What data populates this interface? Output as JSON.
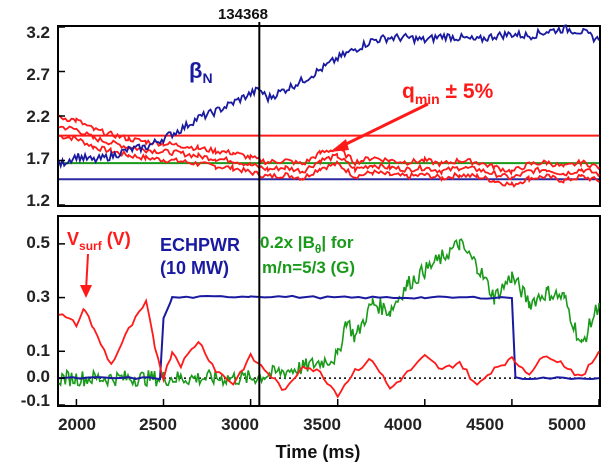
{
  "chart_data": [
    {
      "type": "line",
      "panel": "top",
      "shot_label": "134368",
      "xlim": [
        1900,
        5000
      ],
      "ylim": [
        1.2,
        3.2
      ],
      "y_ticks": [
        "3.2",
        "2.7",
        "2.2",
        "1.7",
        "1.2"
      ],
      "y_tick_values": [
        3.2,
        2.7,
        2.2,
        1.7,
        1.2
      ],
      "annotations": {
        "beta_n": "β",
        "beta_n_sub": "N",
        "qmin": "q",
        "qmin_sub": "min",
        "qmin_pm": " ± 5%"
      },
      "colors": {
        "beta_n": "#1a1aa0",
        "qmin": "#ff1a1a",
        "reference_green": "#1a9a1a",
        "reference_blue": "#2a2aa0",
        "reference_red": "#ff1a1a"
      },
      "reference_lines": [
        {
          "color": "red",
          "y": 1.98
        },
        {
          "color": "green",
          "y": 1.67
        },
        {
          "color": "blue",
          "y": 1.49
        }
      ],
      "series": [
        {
          "key": "beta_n",
          "x": [
            1900,
            2000,
            2100,
            2200,
            2300,
            2400,
            2500,
            2600,
            2700,
            2800,
            2900,
            3000,
            3050,
            3100,
            3200,
            3300,
            3400,
            3500,
            3600,
            3700,
            3800,
            3900,
            4000,
            4100,
            4200,
            4300,
            4400,
            4500,
            4600,
            4700,
            4800,
            4900,
            5000
          ],
          "y": [
            1.65,
            1.75,
            1.7,
            1.75,
            1.82,
            1.85,
            1.95,
            2.05,
            2.18,
            2.25,
            2.35,
            2.45,
            2.5,
            2.4,
            2.5,
            2.6,
            2.72,
            2.85,
            2.95,
            3.05,
            3.08,
            3.08,
            3.05,
            3.1,
            3.08,
            3.05,
            3.1,
            3.12,
            3.1,
            3.15,
            3.18,
            3.15,
            3.05
          ]
        },
        {
          "key": "qmin",
          "x": [
            1900,
            2000,
            2100,
            2200,
            2300,
            2400,
            2500,
            2600,
            2700,
            2800,
            2900,
            3000,
            3100,
            3200,
            3300,
            3400,
            3500,
            3600,
            3700,
            3800,
            3900,
            4000,
            4100,
            4200,
            4300,
            4400,
            4500,
            4600,
            4700,
            4800,
            4900,
            5000
          ],
          "y": [
            2.08,
            2.05,
            1.95,
            1.9,
            1.85,
            1.82,
            1.8,
            1.78,
            1.75,
            1.72,
            1.7,
            1.65,
            1.6,
            1.62,
            1.58,
            1.7,
            1.75,
            1.6,
            1.65,
            1.62,
            1.6,
            1.62,
            1.58,
            1.62,
            1.6,
            1.55,
            1.5,
            1.58,
            1.6,
            1.55,
            1.6,
            1.55
          ]
        }
      ]
    },
    {
      "type": "line",
      "panel": "bottom",
      "xlim": [
        1900,
        5000
      ],
      "ylim": [
        -0.1,
        0.6
      ],
      "y_ticks": [
        "0.5",
        "0.3",
        "0.1",
        "0.0",
        "-0.1"
      ],
      "y_tick_values": [
        0.5,
        0.3,
        0.1,
        0.0,
        -0.1
      ],
      "x_ticks": [
        "2000",
        "2500",
        "3000",
        "3500",
        "4000",
        "4500",
        "5000"
      ],
      "x_tick_values": [
        2000,
        2500,
        3000,
        3500,
        4000,
        4500,
        5000
      ],
      "xlabel": "Time (ms)",
      "zero_line": true,
      "vertical_marker_x": 3050,
      "annotations": {
        "vsurf": "V",
        "vsurf_sub": "surf",
        "vsurf_unit": " (V)",
        "echpwr_line1": "ECHPWR",
        "echpwr_line2": "(10 MW)",
        "b_prefix": "0.2x |",
        "b_symbol": "B",
        "b_sub": "θ",
        "b_suffix": "| for",
        "b_line2": "m/n=5/3 (G)"
      },
      "colors": {
        "vsurf": "#ff1a1a",
        "echpwr": "#1a1aa0",
        "btheta": "#1a9a1a",
        "zero_line": "#000000"
      },
      "series": [
        {
          "key": "vsurf",
          "x": [
            1900,
            2000,
            2050,
            2100,
            2200,
            2300,
            2400,
            2450,
            2500,
            2550,
            2600,
            2700,
            2800,
            2900,
            3000,
            3100,
            3200,
            3300,
            3400,
            3500,
            3600,
            3700,
            3800,
            3900,
            4000,
            4100,
            4200,
            4300,
            4400,
            4500,
            4600,
            4700,
            4800,
            4900,
            5000
          ],
          "y": [
            0.24,
            0.2,
            0.26,
            0.18,
            0.05,
            0.18,
            0.28,
            0.12,
            0.0,
            0.1,
            0.05,
            0.14,
            0.03,
            -0.02,
            0.08,
            0.02,
            -0.05,
            0.05,
            0.02,
            -0.06,
            0.03,
            0.07,
            -0.04,
            0.02,
            0.08,
            0.03,
            0.06,
            -0.03,
            0.04,
            0.07,
            0.02,
            0.09,
            0.05,
            0.0,
            0.1
          ]
        },
        {
          "key": "echpwr",
          "x": [
            1900,
            2480,
            2500,
            2550,
            3000,
            3500,
            4000,
            4480,
            4500,
            4520,
            5000
          ],
          "y": [
            0.0,
            0.0,
            0.22,
            0.3,
            0.305,
            0.3,
            0.3,
            0.3,
            0.3,
            0.0,
            0.0
          ]
        },
        {
          "key": "btheta",
          "x": [
            1900,
            2500,
            3000,
            3300,
            3500,
            3550,
            3600,
            3700,
            3800,
            3900,
            4000,
            4100,
            4200,
            4300,
            4400,
            4500,
            4600,
            4700,
            4800,
            4900,
            5000
          ],
          "y": [
            0.0,
            0.0,
            0.0,
            0.04,
            0.08,
            0.22,
            0.15,
            0.28,
            0.25,
            0.35,
            0.4,
            0.45,
            0.5,
            0.42,
            0.3,
            0.38,
            0.28,
            0.32,
            0.3,
            0.12,
            0.28
          ]
        }
      ]
    }
  ]
}
